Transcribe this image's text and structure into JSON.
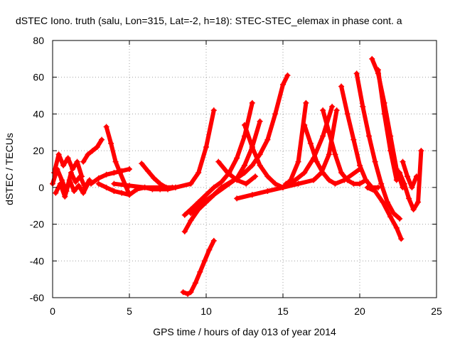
{
  "chart_data": {
    "type": "scatter",
    "title": "dSTEC Iono. truth (salu, Lon=315, Lat=-2, h=18): STEC-STEC_elemax in phase cont. a",
    "xlabel": "GPS time / hours of day 013 of year 2014",
    "ylabel": "dSTEC  / TECUs",
    "xlim": [
      0,
      25
    ],
    "ylim": [
      -60,
      80
    ],
    "xticks": [
      0,
      5,
      10,
      15,
      20,
      25
    ],
    "yticks": [
      -60,
      -40,
      -20,
      0,
      20,
      40,
      60,
      80
    ],
    "grid": true,
    "marker": "+",
    "color": "#ff0000",
    "series": [
      {
        "x": [
          0.0,
          0.3,
          0.6,
          0.9,
          1.2,
          1.5,
          1.8,
          2.1,
          2.4
        ],
        "y": [
          2,
          10,
          4,
          -2,
          8,
          3,
          6,
          0,
          4
        ]
      },
      {
        "x": [
          0.1,
          0.4,
          0.7,
          1.0,
          1.3,
          1.6,
          1.9
        ],
        "y": [
          8,
          18,
          12,
          16,
          10,
          14,
          6
        ]
      },
      {
        "x": [
          0.2,
          0.5,
          0.8,
          1.1,
          1.4,
          1.7,
          2.0,
          2.3
        ],
        "y": [
          -3,
          2,
          -5,
          4,
          -2,
          1,
          -3,
          2
        ]
      },
      {
        "x": [
          2.0,
          2.3,
          2.6,
          2.9,
          3.2
        ],
        "y": [
          14,
          18,
          20,
          22,
          26
        ]
      },
      {
        "x": [
          3.5,
          3.8,
          4.1,
          4.4,
          4.7,
          5.0
        ],
        "y": [
          33,
          24,
          14,
          8,
          2,
          -4
        ]
      },
      {
        "x": [
          2.5,
          3.0,
          3.5,
          4.0,
          4.5,
          5.0
        ],
        "y": [
          2,
          5,
          7,
          8,
          9,
          10
        ]
      },
      {
        "x": [
          3.0,
          3.5,
          4.0,
          4.5,
          5.0,
          5.5,
          6.0,
          6.5,
          7.0,
          7.5,
          8.0
        ],
        "y": [
          2,
          0,
          -2,
          -3,
          -4,
          -1,
          0,
          -1,
          -1,
          -1,
          0
        ]
      },
      {
        "x": [
          4.0,
          5.0,
          6.0,
          7.0,
          8.0,
          9.0,
          9.5,
          10.0,
          10.5
        ],
        "y": [
          2,
          1,
          0,
          0,
          0,
          2,
          8,
          22,
          42
        ]
      },
      {
        "x": [
          5.8,
          6.2,
          6.6,
          7.0,
          7.4,
          7.8
        ],
        "y": [
          13,
          9,
          5,
          2,
          0,
          0
        ]
      },
      {
        "x": [
          8.5,
          8.8,
          9.0,
          9.3,
          9.6,
          9.9,
          10.2,
          10.5
        ],
        "y": [
          -57,
          -58,
          -57,
          -52,
          -46,
          -40,
          -34,
          -29
        ]
      },
      {
        "x": [
          8.6,
          9.0,
          9.5,
          10.0,
          10.5,
          11.0
        ],
        "y": [
          -24,
          -18,
          -12,
          -8,
          -4,
          0
        ]
      },
      {
        "x": [
          8.6,
          9.0,
          9.5,
          10.0,
          10.5,
          11.0,
          11.5,
          12.0,
          12.5,
          13.0
        ],
        "y": [
          -15,
          -12,
          -8,
          -4,
          0,
          3,
          8,
          16,
          28,
          46
        ]
      },
      {
        "x": [
          9.0,
          10.0,
          11.0,
          12.0,
          12.5,
          13.0,
          13.5
        ],
        "y": [
          -14,
          -8,
          0,
          5,
          12,
          22,
          36
        ]
      },
      {
        "x": [
          9.5,
          10.5,
          11.5,
          12.5,
          13.0,
          13.5,
          14.0,
          14.5,
          15.0,
          15.3
        ],
        "y": [
          -10,
          -4,
          2,
          8,
          12,
          18,
          26,
          40,
          56,
          61
        ]
      },
      {
        "x": [
          10.8,
          11.4,
          12.0,
          12.6,
          13.2
        ],
        "y": [
          14,
          8,
          4,
          2,
          6
        ]
      },
      {
        "x": [
          12.5,
          13.0,
          13.5,
          14.0,
          14.5,
          15.0,
          15.5,
          16.0,
          16.5
        ],
        "y": [
          34,
          22,
          12,
          6,
          2,
          0,
          4,
          14,
          46
        ]
      },
      {
        "x": [
          12.0,
          13.0,
          14.0,
          15.0,
          16.0,
          17.0,
          17.5,
          18.0,
          18.5
        ],
        "y": [
          -6,
          -4,
          -2,
          0,
          2,
          4,
          8,
          18,
          42
        ]
      },
      {
        "x": [
          15.2,
          15.8,
          16.4,
          17.0,
          17.6,
          18.2
        ],
        "y": [
          2,
          4,
          8,
          16,
          28,
          44
        ]
      },
      {
        "x": [
          16.4,
          16.8,
          17.2,
          17.6,
          18.0,
          18.4,
          19.0,
          20.0
        ],
        "y": [
          34,
          24,
          14,
          8,
          4,
          2,
          4,
          10
        ]
      },
      {
        "x": [
          17.6,
          18.0,
          18.4,
          18.8,
          19.2,
          19.6,
          20.0,
          20.4
        ],
        "y": [
          42,
          30,
          18,
          8,
          4,
          2,
          2,
          4
        ]
      },
      {
        "x": [
          18.8,
          19.2,
          19.6,
          20.0,
          20.4,
          20.8,
          21.2
        ],
        "y": [
          55,
          40,
          26,
          12,
          4,
          0,
          0
        ]
      },
      {
        "x": [
          19.8,
          20.2,
          20.6,
          21.0,
          21.4,
          21.8,
          22.2,
          22.6
        ],
        "y": [
          62,
          44,
          28,
          14,
          2,
          -8,
          -14,
          -17
        ]
      },
      {
        "x": [
          20.8,
          21.2,
          21.6,
          22.0,
          22.4,
          22.8
        ],
        "y": [
          70,
          62,
          46,
          28,
          10,
          0
        ]
      },
      {
        "x": [
          21.2,
          21.6,
          22.0,
          22.4
        ],
        "y": [
          64,
          40,
          20,
          4
        ]
      },
      {
        "x": [
          20.5,
          21.0,
          21.5,
          22.0,
          22.4,
          22.7
        ],
        "y": [
          0,
          -2,
          -8,
          -16,
          -22,
          -28
        ]
      },
      {
        "x": [
          22.6,
          22.9,
          23.2,
          23.5,
          23.8,
          24.0
        ],
        "y": [
          8,
          2,
          -6,
          -12,
          -8,
          20
        ]
      },
      {
        "x": [
          22.8,
          23.1,
          23.4,
          23.7
        ],
        "y": [
          14,
          6,
          0,
          6
        ]
      }
    ]
  }
}
